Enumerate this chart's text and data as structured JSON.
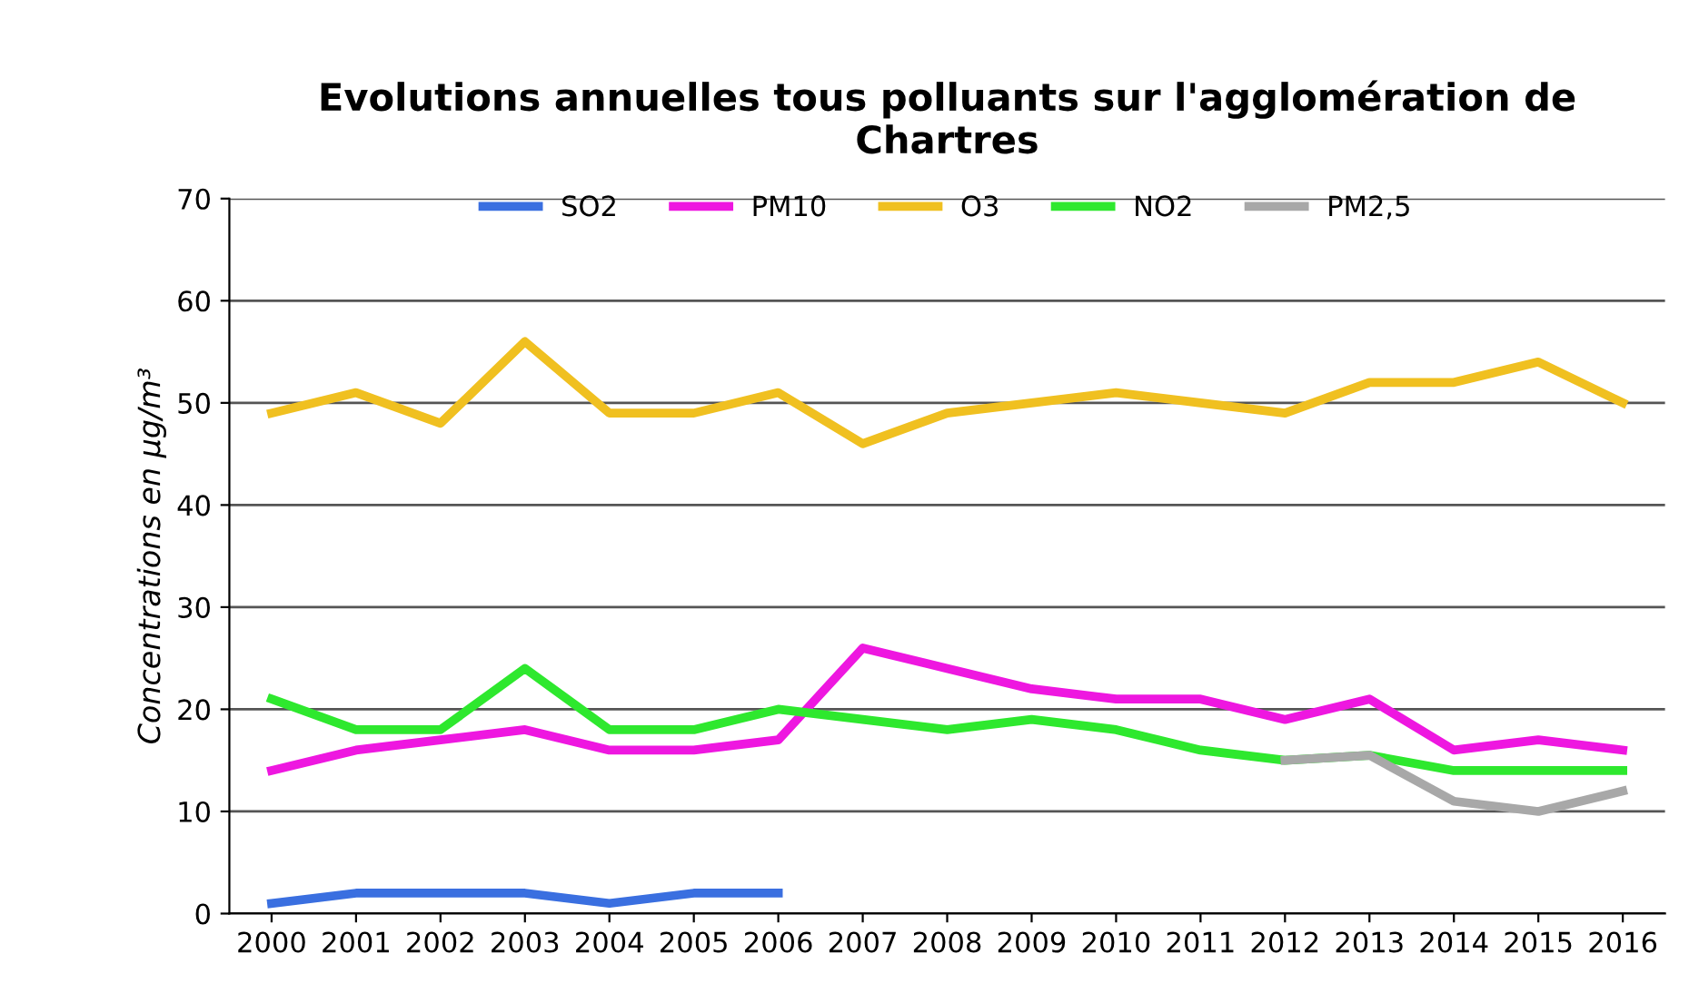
{
  "chart_data": {
    "type": "line",
    "title": "Evolutions annuelles tous polluants sur l'agglomération de\nChartres",
    "ylabel": "Concentrations en µg/m³",
    "categories": [
      "2000",
      "2001",
      "2002",
      "2003",
      "2004",
      "2005",
      "2006",
      "2007",
      "2008",
      "2009",
      "2010",
      "2011",
      "2012",
      "2013",
      "2014",
      "2015",
      "2016"
    ],
    "series": [
      {
        "name": "SO2",
        "color": "#3a6fe0",
        "values": [
          1,
          2,
          2,
          2,
          1,
          2,
          2,
          null,
          null,
          null,
          null,
          null,
          null,
          null,
          null,
          null,
          null
        ]
      },
      {
        "name": "PM10",
        "color": "#ee17e0",
        "values": [
          14,
          16,
          17,
          18,
          16,
          16,
          17,
          26,
          24,
          22,
          21,
          21,
          19,
          21,
          16,
          17,
          16
        ]
      },
      {
        "name": "O3",
        "color": "#f0c020",
        "values": [
          49,
          51,
          48,
          56,
          49,
          49,
          51,
          46,
          49,
          50,
          51,
          50,
          49,
          52,
          52,
          54,
          50
        ]
      },
      {
        "name": "NO2",
        "color": "#2ee82e",
        "values": [
          21,
          18,
          18,
          24,
          18,
          18,
          20,
          19,
          18,
          19,
          18,
          16,
          15,
          15.5,
          14,
          14,
          14
        ]
      },
      {
        "name": "PM2,5",
        "color": "#a8a8a8",
        "values": [
          null,
          null,
          null,
          null,
          null,
          null,
          null,
          null,
          null,
          null,
          null,
          null,
          15,
          15.5,
          11,
          10,
          12
        ]
      }
    ],
    "ylim": [
      0,
      70
    ],
    "yticks": [
      0,
      10,
      20,
      30,
      40,
      50,
      60,
      70
    ],
    "grid": "y",
    "legend": "top"
  }
}
